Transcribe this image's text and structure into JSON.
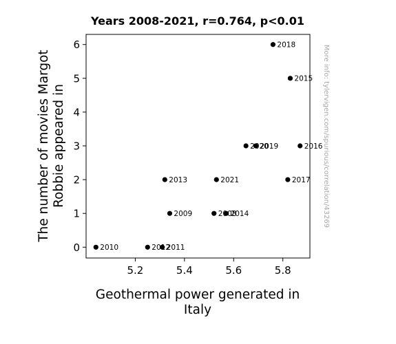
{
  "chart_data": {
    "type": "scatter",
    "title": "Years 2008-2021, r=0.764, p<0.01",
    "xlabel_lines": [
      "Geothermal power generated in",
      "Italy"
    ],
    "ylabel_lines": [
      "The number of movies Margot",
      "Robbie appeared in"
    ],
    "watermark": "More info: tylervigen.com/spurious/correlation/43269",
    "xlim": [
      5.0,
      5.91
    ],
    "ylim": [
      -0.32,
      6.3
    ],
    "xticks": [
      5.2,
      5.4,
      5.6,
      5.8
    ],
    "xtick_labels": [
      "5.2",
      "5.4",
      "5.6",
      "5.8"
    ],
    "yticks": [
      0,
      1,
      2,
      3,
      4,
      5,
      6
    ],
    "ytick_labels": [
      "0",
      "1",
      "2",
      "3",
      "4",
      "5",
      "6"
    ],
    "grid": false,
    "color": "#000000",
    "points": [
      {
        "label": "2008",
        "x": 5.52,
        "y": 1
      },
      {
        "label": "2009",
        "x": 5.34,
        "y": 1
      },
      {
        "label": "2010",
        "x": 5.04,
        "y": 0
      },
      {
        "label": "2011",
        "x": 5.31,
        "y": 0
      },
      {
        "label": "2012",
        "x": 5.25,
        "y": 0
      },
      {
        "label": "2013",
        "x": 5.32,
        "y": 2
      },
      {
        "label": "2014",
        "x": 5.57,
        "y": 1
      },
      {
        "label": "2015",
        "x": 5.83,
        "y": 5
      },
      {
        "label": "2016",
        "x": 5.87,
        "y": 3
      },
      {
        "label": "2017",
        "x": 5.82,
        "y": 2
      },
      {
        "label": "2018",
        "x": 5.76,
        "y": 6
      },
      {
        "label": "2019",
        "x": 5.69,
        "y": 3
      },
      {
        "label": "2020",
        "x": 5.65,
        "y": 3
      },
      {
        "label": "2021",
        "x": 5.53,
        "y": 2
      }
    ]
  }
}
